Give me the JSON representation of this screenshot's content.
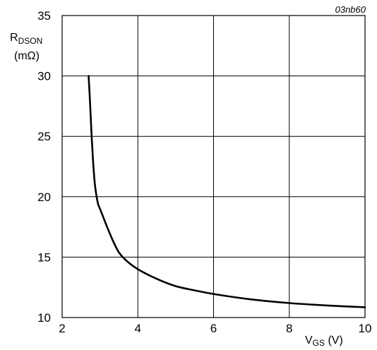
{
  "chart_data": {
    "type": "line",
    "figure_id": "03nb60",
    "ylabel": {
      "main": "R",
      "sub": "DSON",
      "unit": "(mΩ)"
    },
    "xlabel": {
      "main": "V",
      "sub": "GS",
      "unit": " (V)"
    },
    "xlim": [
      2,
      10
    ],
    "ylim": [
      10,
      35
    ],
    "xticks": [
      2,
      4,
      6,
      8,
      10
    ],
    "yticks": [
      10,
      15,
      20,
      25,
      30,
      35
    ],
    "grid": true,
    "series": [
      {
        "x": [
          2.7,
          2.74,
          2.78,
          2.82,
          2.86,
          2.9,
          2.95,
          3.0,
          3.1,
          3.2,
          3.35,
          3.5,
          3.7,
          4.0,
          4.5,
          5.0,
          5.5,
          6.0,
          7.0,
          8.0,
          9.0,
          10.0
        ],
        "y": [
          30.0,
          27.6,
          25.0,
          22.8,
          21.2,
          20.2,
          19.4,
          19.0,
          18.2,
          17.4,
          16.3,
          15.4,
          14.7,
          14.0,
          13.2,
          12.6,
          12.25,
          11.95,
          11.5,
          11.2,
          11.0,
          10.85
        ]
      }
    ]
  }
}
